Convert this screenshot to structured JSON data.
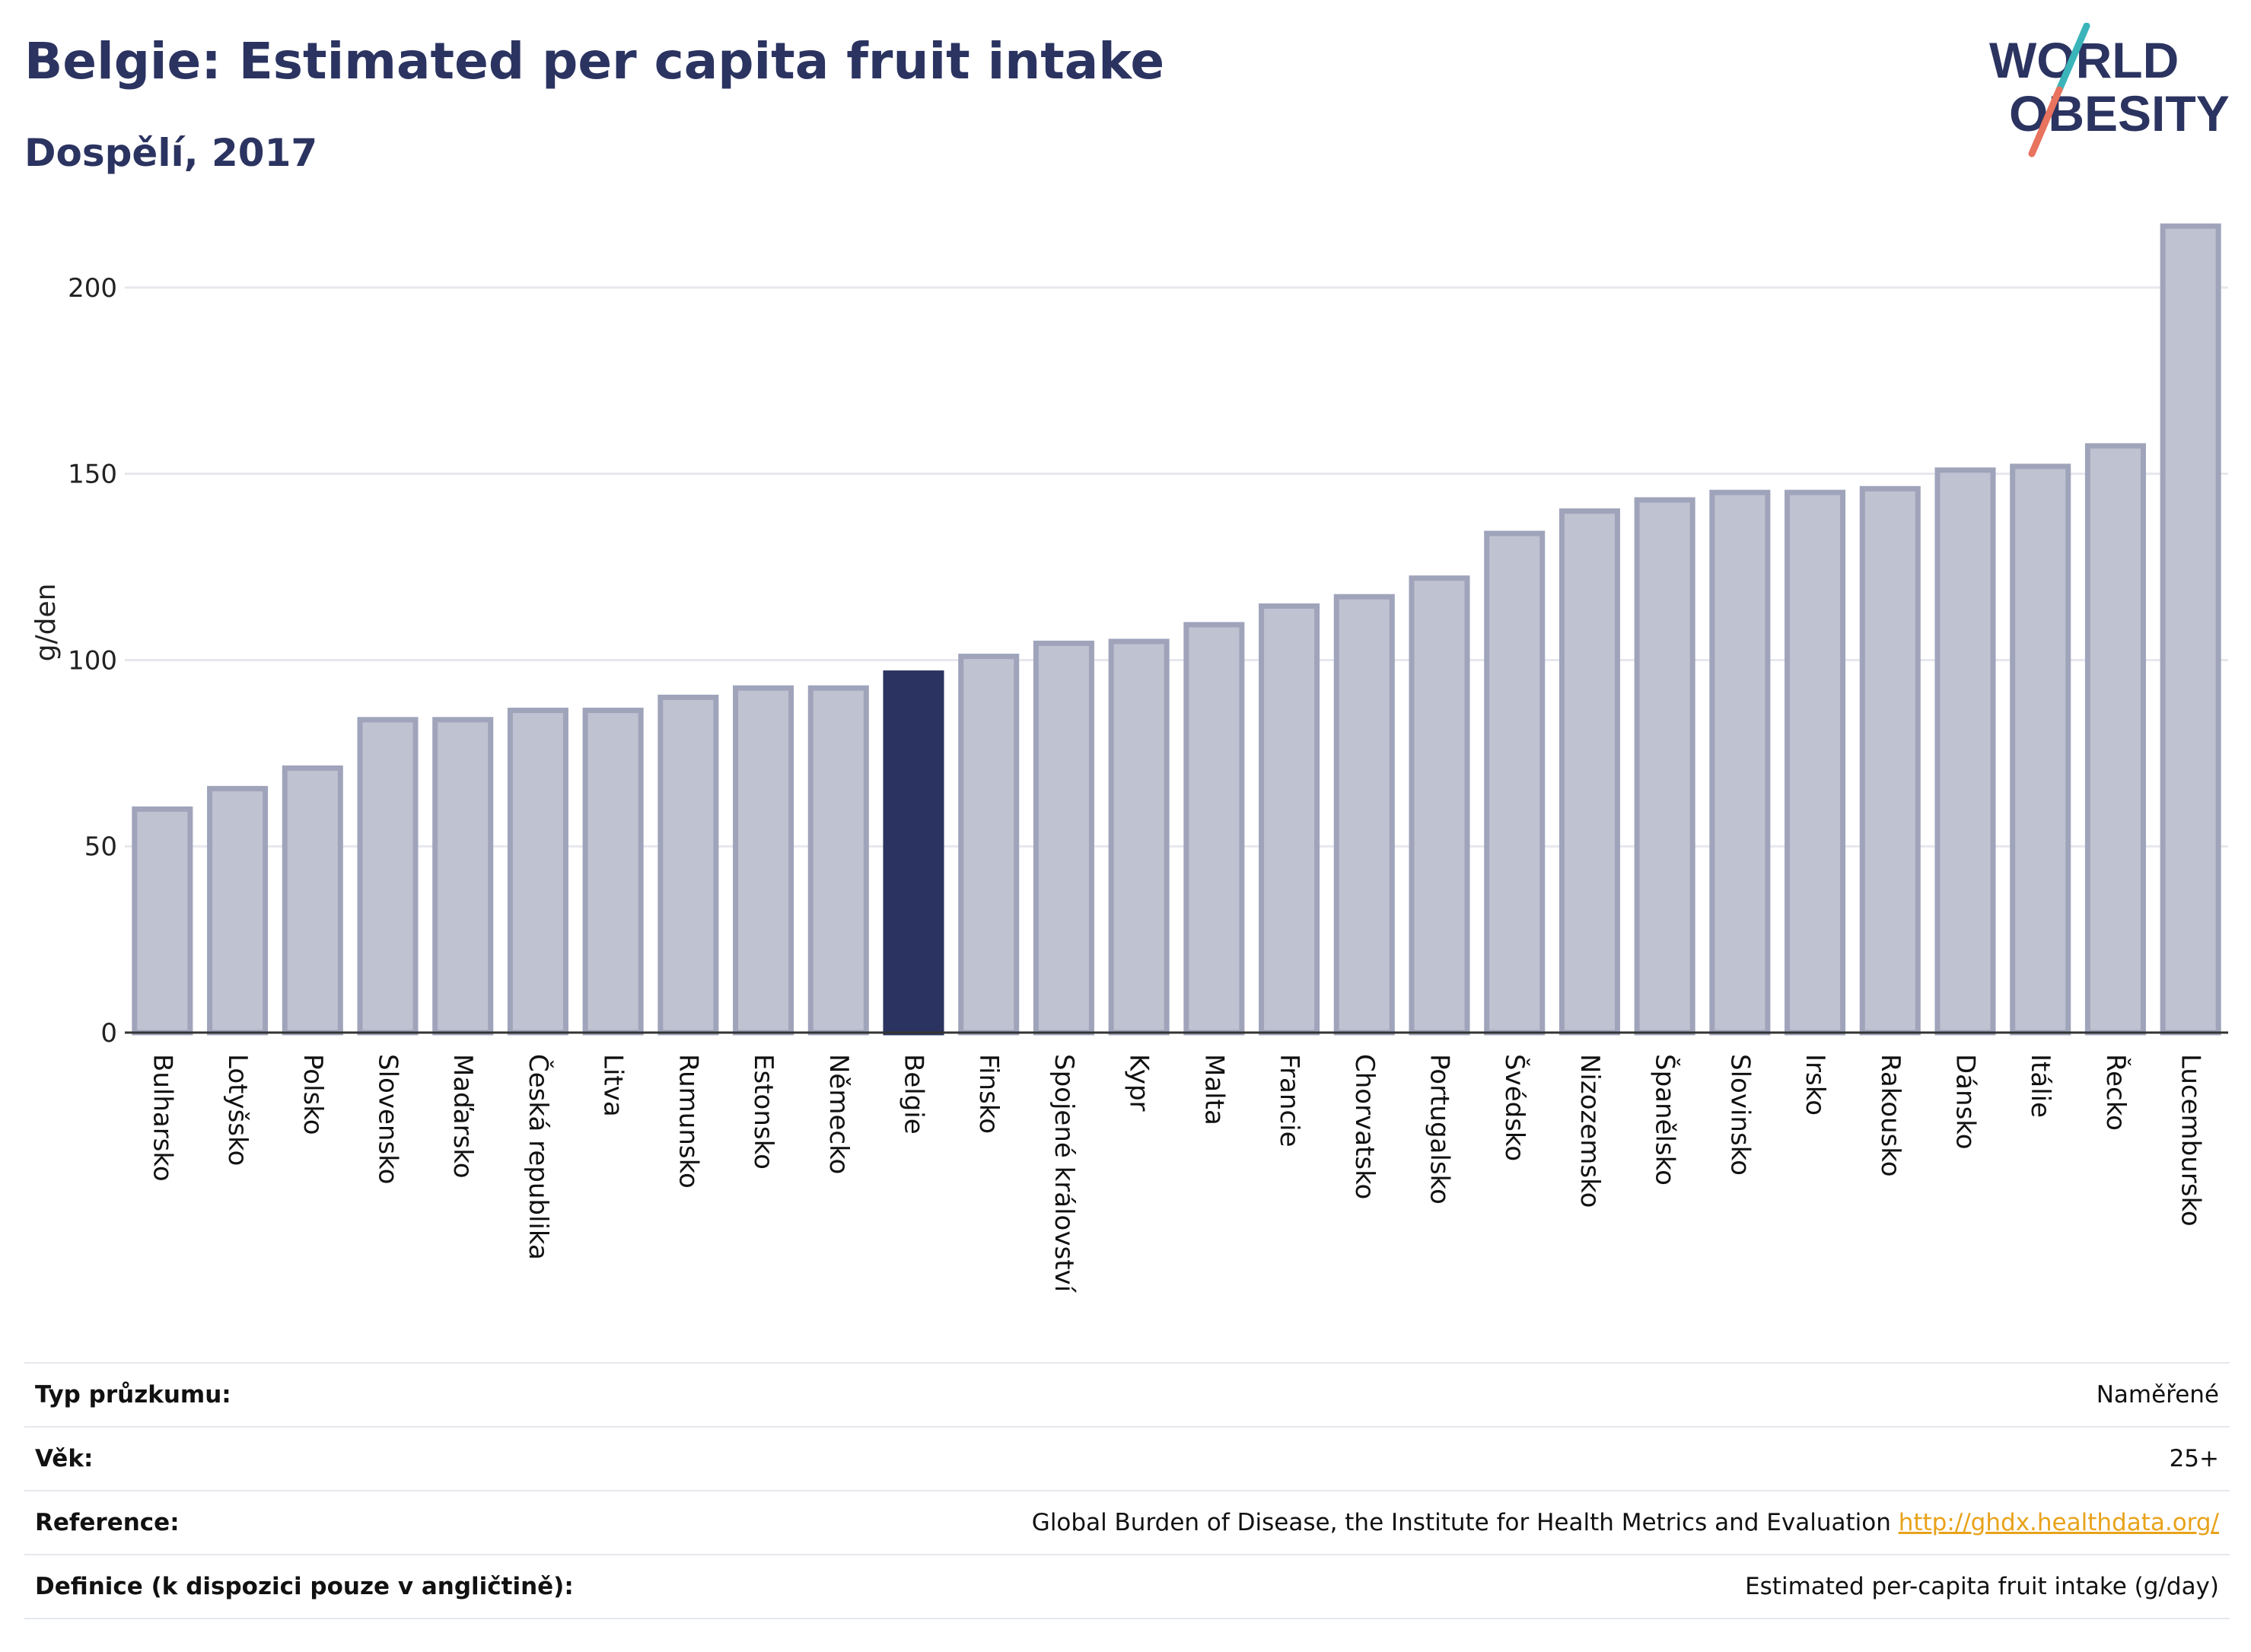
{
  "header": {
    "title": "Belgie: Estimated per capita fruit intake",
    "subtitle": "Dospělí, 2017"
  },
  "logo": {
    "line1": "WORLD",
    "line2": "OBESITY"
  },
  "colors": {
    "highlight": "#2b3360",
    "bar_fill": "#bfc2d0",
    "bar_stroke": "#9fa4bb",
    "grid": "#e6e8ee",
    "text": "#2b3360",
    "logo_teal": "#3ab4b9",
    "logo_coral": "#e8735e"
  },
  "chart_data": {
    "type": "bar",
    "title": "",
    "xlabel": "",
    "ylabel": "g/den",
    "ylim": [
      0,
      220
    ],
    "yticks": [
      0,
      50,
      100,
      150,
      200
    ],
    "grid": true,
    "highlight": "Belgie",
    "categories": [
      "Bulharsko",
      "Lotyšsko",
      "Polsko",
      "Slovensko",
      "Maďarsko",
      "Česká republika",
      "Litva",
      "Rumunsko",
      "Estonsko",
      "Německo",
      "Belgie",
      "Finsko",
      "Spojené království",
      "Kypr",
      "Malta",
      "Francie",
      "Chorvatsko",
      "Portugalsko",
      "Švédsko",
      "Nizozemsko",
      "Španělsko",
      "Slovinsko",
      "Irsko",
      "Rakousko",
      "Dánsko",
      "Itálie",
      "Řecko",
      "Lucembursko"
    ],
    "values": [
      60,
      65.5,
      71,
      84,
      84,
      86.5,
      86.5,
      90,
      92.5,
      92.5,
      96.5,
      101,
      104.5,
      105,
      109.5,
      114.5,
      117,
      122,
      134,
      140,
      143,
      145,
      145,
      146,
      151,
      152,
      157.5,
      216.5
    ]
  },
  "details": [
    {
      "label": "Typ průzkumu:",
      "value": "Naměřené"
    },
    {
      "label": "Věk:",
      "value": "25+"
    },
    {
      "label": "Reference:",
      "value": "Global Burden of Disease, the Institute for Health Metrics and Evaluation",
      "link": "http://ghdx.healthdata.org/"
    },
    {
      "label": "Definice (k dispozici pouze v angličtině):",
      "value": "Estimated per-capita fruit intake (g/day)"
    }
  ]
}
